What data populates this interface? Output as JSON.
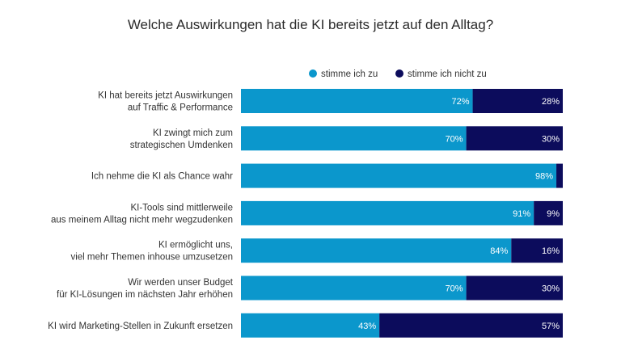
{
  "colors": {
    "agree": "#0b97cc",
    "disagree": "#0c0c5c",
    "text": "#333333",
    "background": "#ffffff"
  },
  "chart_data": {
    "type": "bar",
    "orientation": "horizontal",
    "stacked": true,
    "title": "Welche Auswirkungen hat die KI bereits jetzt auf den Alltag?",
    "xlim": [
      0,
      100
    ],
    "grid": false,
    "legend_position": "top-right",
    "categories": [
      [
        "KI hat bereits jetzt Auswirkungen",
        "auf Traffic & Performance"
      ],
      [
        "KI zwingt mich zum",
        "strategischen Umdenken"
      ],
      [
        "Ich nehme die KI als Chance wahr"
      ],
      [
        "KI-Tools sind mittlerweile",
        "aus meinem Alltag nicht mehr wegzudenken"
      ],
      [
        "KI ermöglicht uns,",
        "viel mehr Themen inhouse umzusetzen"
      ],
      [
        "Wir werden unser Budget",
        "für KI-Lösungen im nächsten Jahr erhöhen"
      ],
      [
        "KI wird Marketing-Stellen in Zukunft ersetzen"
      ]
    ],
    "series": [
      {
        "name": "stimme ich zu",
        "color": "#0b97cc",
        "values": [
          72,
          70,
          98,
          91,
          84,
          70,
          43
        ],
        "labels": [
          "72%",
          "70%",
          "98%",
          "91%",
          "84%",
          "70%",
          "43%"
        ]
      },
      {
        "name": "stimme ich nicht zu",
        "color": "#0c0c5c",
        "values": [
          28,
          30,
          2,
          9,
          16,
          30,
          57
        ],
        "labels": [
          "28%",
          "30%",
          "",
          "9%",
          "16%",
          "30%",
          "57%"
        ]
      }
    ]
  }
}
